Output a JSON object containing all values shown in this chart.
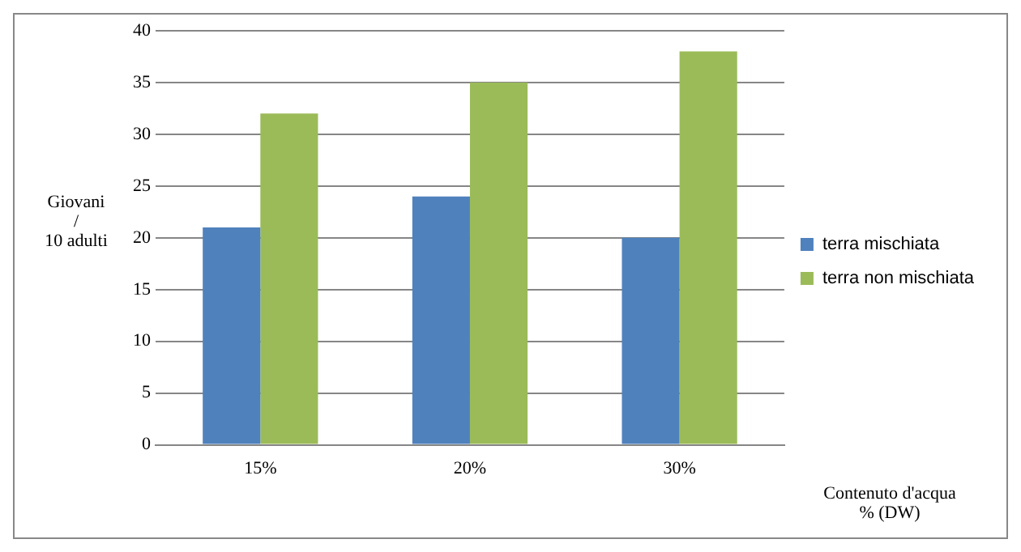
{
  "chart_data": {
    "type": "bar",
    "ylabel": "Giovani\n/\n10 adulti",
    "xlabel": "Contenuto d'acqua\n% (DW)",
    "categories": [
      "15%",
      "20%",
      "30%"
    ],
    "series": [
      {
        "name": "terra mischiata",
        "color": "#4f81bd",
        "values": [
          21,
          24,
          20
        ]
      },
      {
        "name": "terra non mischiata",
        "color": "#9bbb59",
        "values": [
          32,
          35,
          38
        ]
      }
    ],
    "ylim": [
      0,
      40
    ],
    "yticks": [
      0,
      5,
      10,
      15,
      20,
      25,
      30,
      35,
      40
    ],
    "grid": "y",
    "legend": "right"
  }
}
